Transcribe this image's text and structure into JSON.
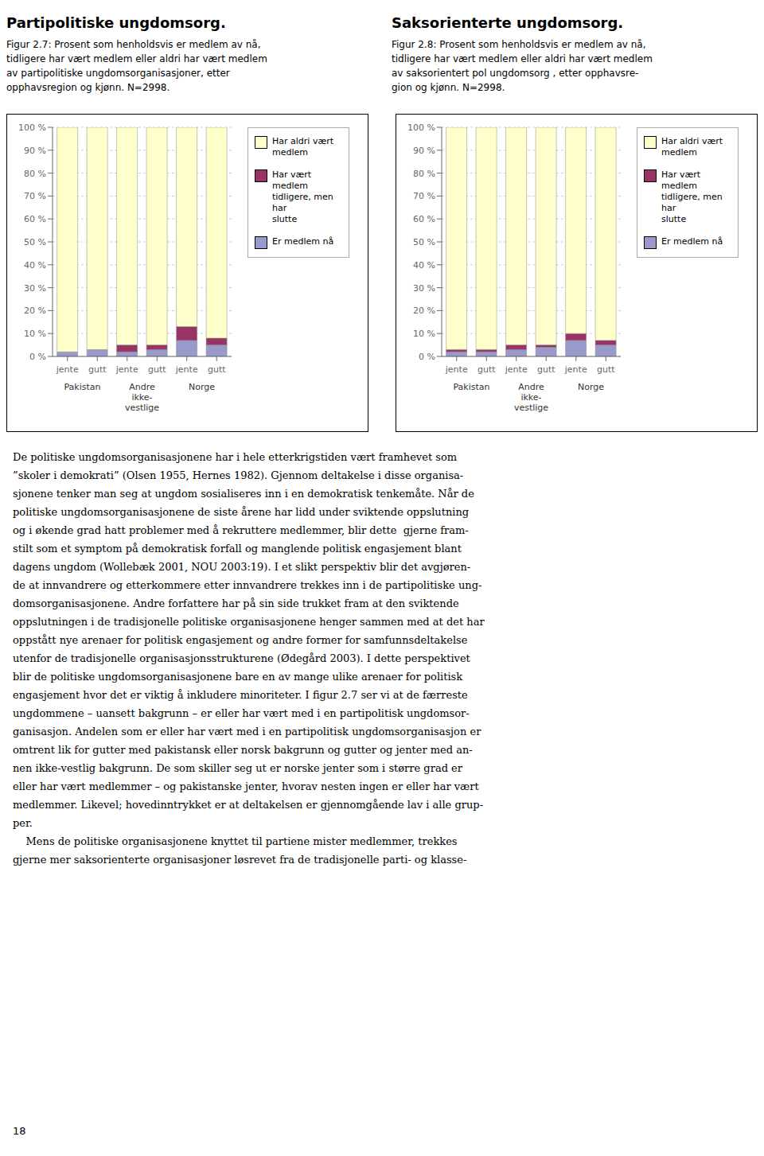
{
  "chart_data": [
    {
      "type": "bar",
      "stacked": true,
      "grid": true,
      "legend": "right",
      "title": "Partipolitiske ungdomsorg.",
      "subtitle": [
        "Figur 2.7: Prosent som henholdsvis er medlem av nå,",
        "tidligere har vært medlem eller aldri har vært medlem",
        "av partipolitiske ungdomsorganisasjoner, etter",
        "opphavsregion og kjønn. N=2998."
      ],
      "categories": [
        "jente",
        "gutt",
        "jente",
        "gutt",
        "jente",
        "gutt"
      ],
      "annotations": [
        "Pakistan",
        "Andre\nikke-\nvestlige",
        "Norge"
      ],
      "ylim": [
        0,
        100
      ],
      "yticks": [
        {
          "value": 0,
          "label": "0 %"
        },
        {
          "value": 10,
          "label": "10 %"
        },
        {
          "value": 20,
          "label": "20 %"
        },
        {
          "value": 30,
          "label": "30 %"
        },
        {
          "value": 40,
          "label": "40 %"
        },
        {
          "value": 50,
          "label": "50 %"
        },
        {
          "value": 60,
          "label": "60 %"
        },
        {
          "value": 70,
          "label": "70 %"
        },
        {
          "value": 80,
          "label": "80 %"
        },
        {
          "value": 90,
          "label": "90 %"
        },
        {
          "value": 100,
          "label": "100 %"
        }
      ],
      "series": [
        {
          "name": "Er medlem nå",
          "color": "#9999cc",
          "values": [
            2,
            3,
            2,
            3,
            7,
            5
          ]
        },
        {
          "name": "Har vært medlem\ntidligere, men har\nslutte",
          "color": "#993366",
          "values": [
            0,
            0,
            3,
            2,
            6,
            3
          ]
        },
        {
          "name": "Har aldri vært\nmedlem",
          "color": "#ffffcc",
          "values": [
            98,
            97,
            95,
            95,
            87,
            92
          ]
        }
      ]
    },
    {
      "type": "bar",
      "stacked": true,
      "grid": true,
      "legend": "right",
      "title": "Saksorienterte ungdomsorg.",
      "subtitle": [
        "Figur 2.8: Prosent som henholdsvis er medlem av nå,",
        "tidligere har vært medlem eller aldri har vært medlem",
        "av saksorientert pol ungdomsorg , etter opphavsre-",
        "gion og kjønn. N=2998."
      ],
      "categories": [
        "jente",
        "gutt",
        "jente",
        "gutt",
        "jente",
        "gutt"
      ],
      "annotations": [
        "Pakistan",
        "Andre\nikke-\nvestlige",
        "Norge"
      ],
      "ylim": [
        0,
        100
      ],
      "yticks": [
        {
          "value": 0,
          "label": "0 %"
        },
        {
          "value": 10,
          "label": "10 %"
        },
        {
          "value": 20,
          "label": "20 %"
        },
        {
          "value": 30,
          "label": "30 %"
        },
        {
          "value": 40,
          "label": "40 %"
        },
        {
          "value": 50,
          "label": "50 %"
        },
        {
          "value": 60,
          "label": "60 %"
        },
        {
          "value": 70,
          "label": "70 %"
        },
        {
          "value": 80,
          "label": "80 %"
        },
        {
          "value": 90,
          "label": "90 %"
        },
        {
          "value": 100,
          "label": "100 %"
        }
      ],
      "series": [
        {
          "name": "Er medlem nå",
          "color": "#9999cc",
          "values": [
            2,
            2,
            3,
            4,
            7,
            5
          ]
        },
        {
          "name": "Har vært medlem\ntidligere, men har\nslutte",
          "color": "#993366",
          "values": [
            1,
            1,
            2,
            1,
            3,
            2
          ]
        },
        {
          "name": "Har aldri vært\nmedlem",
          "color": "#ffffcc",
          "values": [
            97,
            97,
            95,
            95,
            90,
            93
          ]
        }
      ]
    }
  ],
  "annotations": [
    "De politiske ungdomsorganisasjonene har i hele etterkrigstiden vært framhevet som",
    "”skoler i demokrati” (Olsen 1955, Hernes 1982). Gjennom deltakelse i disse organisa-",
    "sjonene tenker man seg at ungdom sosialiseres inn i en demokratisk tenkemåte. Når de",
    "politiske ungdomsorganisasjonene de siste årene har lidd under sviktende oppslutning",
    "og i økende grad hatt problemer med å rekruttere medlemmer, blir dette  gjerne fram-",
    "stilt som et symptom på demokratisk forfall og manglende politisk engasjement blant",
    "dagens ungdom (Wollebæk 2001, NOU 2003:19). I et slikt perspektiv blir det avgjøren-",
    "de at innvandrere og etterkommere etter innvandrere trekkes inn i de partipolitiske ung-",
    "domsorganisasjonene. Andre forfattere har på sin side trukket fram at den sviktende",
    "oppslutningen i de tradisjonelle politiske organisasjonene henger sammen med at det har",
    "oppstått nye arenaer for politisk engasjement og andre former for samfunnsdeltakelse",
    "utenfor de tradisjonelle organisasjonsstrukturene (Ødegård 2003). I dette perspektivet",
    "blir de politiske ungdomsorganisasjonene bare en av mange ulike arenaer for politisk",
    "engasjement hvor det er viktig å inkludere minoriteter. I figur 2.7 ser vi at de færreste",
    "ungdommene – uansett bakgrunn – er eller har vært med i en partipolitisk ungdomsor-",
    "ganisasjon. Andelen som er eller har vært med i en partipolitisk ungdomsorganisasjon er",
    "omtrent lik for gutter med pakistansk eller norsk bakgrunn og gutter og jenter med an-",
    "nen ikke-vestlig bakgrunn. De som skiller seg ut er norske jenter som i større grad er",
    "eller har vært medlemmer – og pakistanske jenter, hvorav nesten ingen er eller har vært",
    "medlemmer. Likevel; hovedinntrykket er at deltakelsen er gjennomgående lav i alle grup-",
    "per.",
    "    Mens de politiske organisasjonene knyttet til partiene mister medlemmer, trekkes",
    "gjerne mer saksorienterte organisasjoner løsrevet fra de tradisjonelle parti- og klasse-"
  ],
  "footer": "18"
}
